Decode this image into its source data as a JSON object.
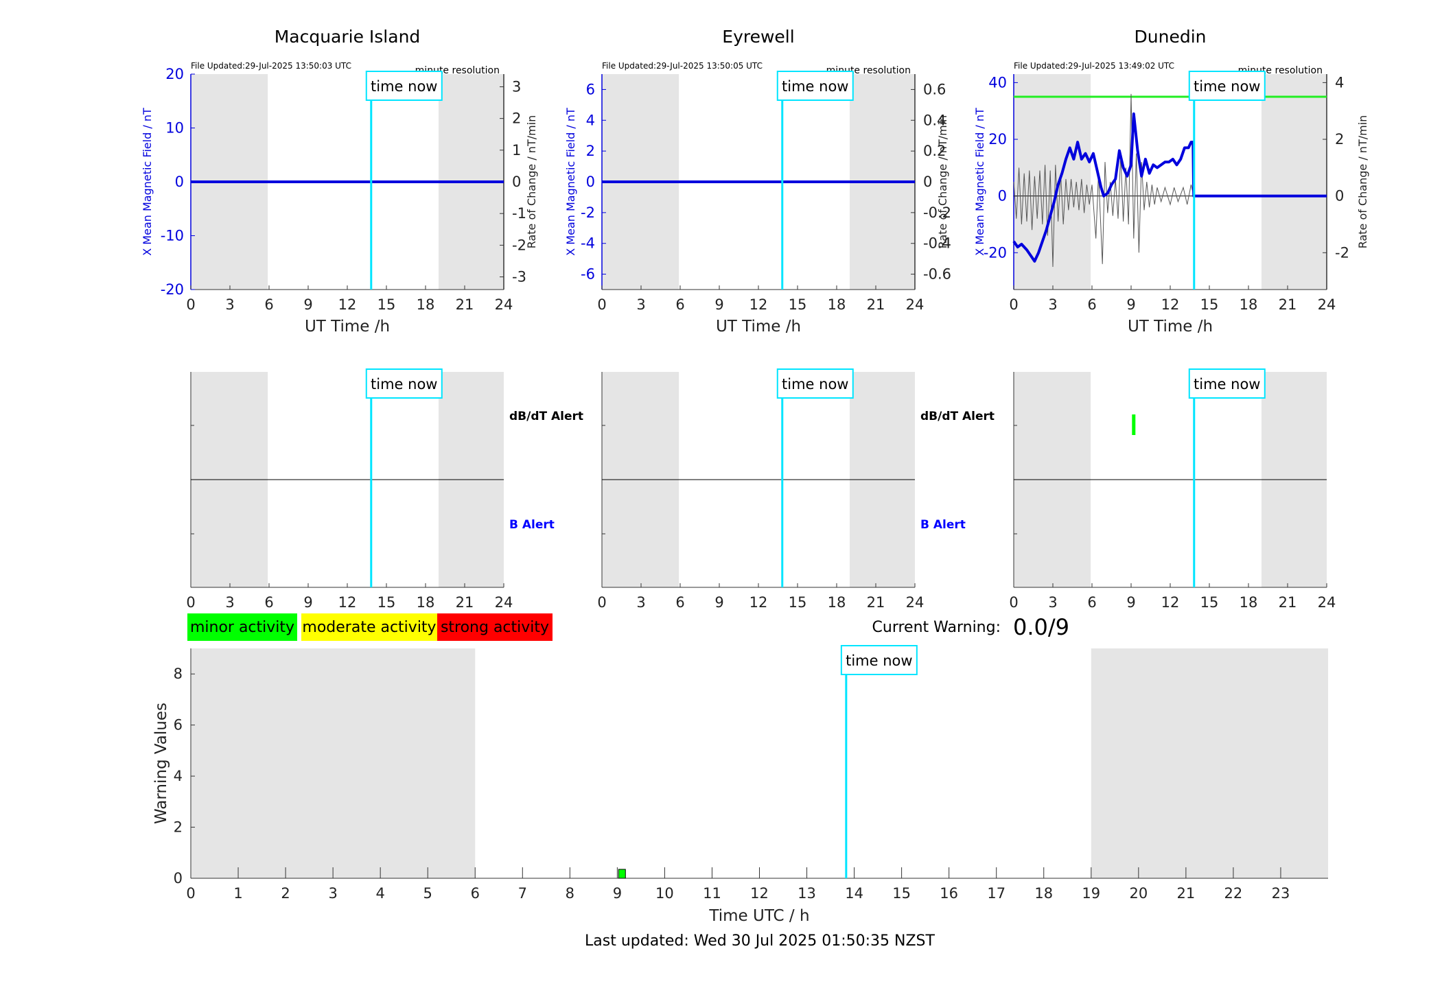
{
  "colors": {
    "x_field": "#0000dd",
    "rate": "#555555",
    "time_now": "#00e5ff",
    "night_shade": "#e5e5e5",
    "threshold": "#22ee22",
    "minor": "#00ff00",
    "moderate": "#ffff00",
    "strong": "#ff0000",
    "b_alert_label": "#0000ff",
    "dbdt_alert_label": "#000000"
  },
  "common": {
    "time_now_label": "time now",
    "resolution_label": "minute resolution",
    "x_axis_label": "UT Time /h",
    "left_axis_label": "X Mean Magnetic Field / nT",
    "right_axis_label": "Rate of Change / nT/min",
    "dbdt_alert_label": "dB/dT Alert",
    "b_alert_label": "B Alert"
  },
  "stations": [
    {
      "name": "Macquarie Island",
      "file_updated": "File Updated:29-Jul-2025 13:50:03 UTC",
      "chart_data": {
        "type": "line",
        "xlabel": "UT Time /h",
        "ylabel": "X Mean Magnetic Field / nT",
        "y2label": "Rate of Change / nT/min",
        "xlim": [
          0,
          24
        ],
        "ylim": [
          -20,
          20
        ],
        "y2lim": [
          -3.4,
          3.4
        ],
        "xticks": [
          0,
          3,
          6,
          9,
          12,
          15,
          18,
          21,
          24
        ],
        "yticks": [
          -20,
          -10,
          0,
          10,
          20
        ],
        "y2ticks": [
          -3,
          -2,
          -1,
          0,
          1,
          2,
          3
        ],
        "night_shading": [
          [
            0,
            5.9
          ],
          [
            19,
            24
          ]
        ],
        "time_now": 13.83,
        "series": [
          {
            "values": [
              [
                0,
                0
              ],
              [
                24,
                0
              ]
            ]
          }
        ]
      },
      "alert_chart": {
        "dbdt_alerts": [],
        "b_alerts": []
      }
    },
    {
      "name": "Eyrewell",
      "file_updated": "File Updated:29-Jul-2025 13:50:05 UTC",
      "chart_data": {
        "type": "line",
        "xlabel": "UT Time /h",
        "ylabel": "X Mean Magnetic Field / nT",
        "y2label": "Rate of Change / nT/min",
        "xlim": [
          0,
          24
        ],
        "ylim": [
          -7,
          7
        ],
        "y2lim": [
          -0.7,
          0.7
        ],
        "xticks": [
          0,
          3,
          6,
          9,
          12,
          15,
          18,
          21,
          24
        ],
        "yticks": [
          -6,
          -4,
          -2,
          0,
          2,
          4,
          6
        ],
        "y2ticks": [
          -0.6,
          -0.4,
          -0.2,
          0,
          0.2,
          0.4,
          0.6
        ],
        "night_shading": [
          [
            0,
            5.9
          ],
          [
            19,
            24
          ]
        ],
        "time_now": 13.83,
        "series": [
          {
            "values": [
              [
                0,
                0
              ],
              [
                24,
                0
              ]
            ]
          }
        ]
      },
      "alert_chart": {
        "dbdt_alerts": [],
        "b_alerts": []
      }
    },
    {
      "name": "Dunedin",
      "file_updated": "File Updated:29-Jul-2025 13:49:02 UTC",
      "chart_data": {
        "type": "line",
        "xlabel": "UT Time /h",
        "ylabel": "X Mean Magnetic Field / nT",
        "y2label": "Rate of Change / nT/min",
        "xlim": [
          0,
          24
        ],
        "ylim": [
          -33,
          43
        ],
        "y2lim": [
          -3.3,
          4.3
        ],
        "xticks": [
          0,
          3,
          6,
          9,
          12,
          15,
          18,
          21,
          24
        ],
        "yticks": [
          -20,
          0,
          20,
          40
        ],
        "y2ticks": [
          -2,
          0,
          2,
          4
        ],
        "night_shading": [
          [
            0,
            5.9
          ],
          [
            19,
            24
          ]
        ],
        "time_now": 13.83,
        "threshold": 35,
        "series": [
          {
            "values": [
              [
                0,
                -16
              ],
              [
                0.3,
                -18
              ],
              [
                0.6,
                -17
              ],
              [
                1,
                -19
              ],
              [
                1.3,
                -21
              ],
              [
                1.6,
                -23
              ],
              [
                1.9,
                -20
              ],
              [
                2.2,
                -16
              ],
              [
                2.5,
                -12
              ],
              [
                2.8,
                -7
              ],
              [
                3.1,
                -2
              ],
              [
                3.4,
                4
              ],
              [
                3.7,
                8
              ],
              [
                4,
                13
              ],
              [
                4.3,
                17
              ],
              [
                4.6,
                13
              ],
              [
                4.9,
                19
              ],
              [
                5.2,
                13
              ],
              [
                5.5,
                15
              ],
              [
                5.8,
                12
              ],
              [
                6.1,
                15
              ],
              [
                6.4,
                9
              ],
              [
                6.7,
                3
              ],
              [
                6.9,
                0
              ],
              [
                7.2,
                1
              ],
              [
                7.5,
                4
              ],
              [
                7.8,
                6
              ],
              [
                8.1,
                16
              ],
              [
                8.4,
                10
              ],
              [
                8.7,
                7
              ],
              [
                9,
                11
              ],
              [
                9.2,
                29
              ],
              [
                9.5,
                16
              ],
              [
                9.8,
                7
              ],
              [
                10.1,
                13
              ],
              [
                10.4,
                8
              ],
              [
                10.7,
                11
              ],
              [
                11,
                10
              ],
              [
                11.3,
                11
              ],
              [
                11.6,
                12
              ],
              [
                11.9,
                12
              ],
              [
                12.2,
                13
              ],
              [
                12.5,
                11
              ],
              [
                12.8,
                13
              ],
              [
                13.1,
                17
              ],
              [
                13.4,
                17
              ],
              [
                13.6,
                19
              ],
              [
                13.75,
                19
              ],
              [
                13.8,
                0
              ],
              [
                24,
                0
              ]
            ]
          },
          {
            "values": [
              [
                0,
                0.5
              ],
              [
                0.2,
                -0.8
              ],
              [
                0.4,
                1
              ],
              [
                0.6,
                -1
              ],
              [
                0.8,
                0.8
              ],
              [
                1,
                -0.9
              ],
              [
                1.2,
                0.9
              ],
              [
                1.4,
                -1.2
              ],
              [
                1.6,
                0.7
              ],
              [
                1.8,
                -0.8
              ],
              [
                2,
                0.9
              ],
              [
                2.2,
                -1
              ],
              [
                2.4,
                1.1
              ],
              [
                2.6,
                -1.4
              ],
              [
                2.8,
                0.9
              ],
              [
                3,
                -2.5
              ],
              [
                3.2,
                1.1
              ],
              [
                3.4,
                -0.9
              ],
              [
                3.6,
                0.8
              ],
              [
                3.8,
                -1
              ],
              [
                4,
                0.6
              ],
              [
                4.2,
                -0.5
              ],
              [
                4.4,
                0.6
              ],
              [
                4.6,
                -0.4
              ],
              [
                4.8,
                0.5
              ],
              [
                5,
                -0.5
              ],
              [
                5.2,
                0.6
              ],
              [
                5.4,
                -0.6
              ],
              [
                5.6,
                0.4
              ],
              [
                5.8,
                -0.3
              ],
              [
                6,
                0.4
              ],
              [
                6.3,
                -1.5
              ],
              [
                6.5,
                0.8
              ],
              [
                6.8,
                -2.4
              ],
              [
                7,
                1.2
              ],
              [
                7.2,
                -0.6
              ],
              [
                7.4,
                0.5
              ],
              [
                7.6,
                -0.7
              ],
              [
                7.8,
                0.6
              ],
              [
                8,
                -0.8
              ],
              [
                8.2,
                1.5
              ],
              [
                8.4,
                -0.9
              ],
              [
                8.6,
                1
              ],
              [
                8.8,
                -1
              ],
              [
                9,
                3.6
              ],
              [
                9.2,
                -1.5
              ],
              [
                9.4,
                1.5
              ],
              [
                9.6,
                -2
              ],
              [
                9.8,
                1.2
              ],
              [
                10,
                -0.5
              ],
              [
                10.2,
                0.5
              ],
              [
                10.4,
                -0.4
              ],
              [
                10.6,
                0.4
              ],
              [
                10.8,
                -0.3
              ],
              [
                11,
                0.3
              ],
              [
                11.3,
                -0.2
              ],
              [
                11.6,
                0.3
              ],
              [
                12,
                -0.3
              ],
              [
                12.3,
                0.3
              ],
              [
                12.6,
                -0.2
              ],
              [
                13,
                0.3
              ],
              [
                13.3,
                -0.3
              ],
              [
                13.6,
                0.4
              ],
              [
                13.8,
                0
              ],
              [
                24,
                0
              ]
            ]
          }
        ]
      },
      "alert_chart": {
        "dbdt_alerts": [
          9.2
        ],
        "b_alerts": []
      }
    }
  ],
  "legend": [
    {
      "label": "minor activity",
      "color": "#00ff00"
    },
    {
      "label": "moderate activity",
      "color": "#ffff00"
    },
    {
      "label": "strong activity",
      "color": "#ff0000"
    }
  ],
  "current_warning": {
    "label": "Current Warning:",
    "value": "0.0/9"
  },
  "warning_chart": {
    "chart_data": {
      "type": "bar",
      "xlabel": "Time UTC / h",
      "ylabel": "Warning Values",
      "xlim": [
        0,
        24
      ],
      "ylim": [
        0,
        9
      ],
      "xticks": [
        0,
        1,
        2,
        3,
        4,
        5,
        6,
        7,
        8,
        9,
        10,
        11,
        12,
        13,
        14,
        15,
        16,
        17,
        18,
        19,
        20,
        21,
        22,
        23
      ],
      "yticks": [
        0,
        2,
        4,
        6,
        8
      ],
      "night_shading": [
        [
          0,
          6
        ],
        [
          19,
          24
        ]
      ],
      "time_now": 13.83,
      "bars": [
        {
          "x": 9.1,
          "value": 0.35,
          "level": "minor"
        }
      ]
    }
  },
  "footer": "Last updated: Wed 30 Jul 2025 01:50:35 NZST"
}
